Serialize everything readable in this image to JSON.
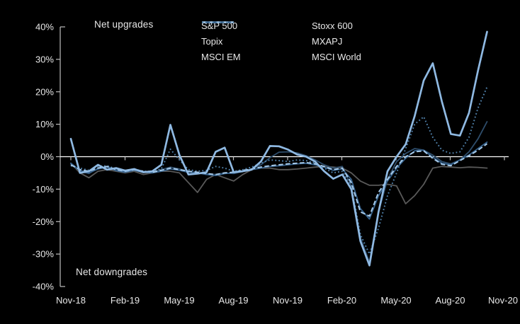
{
  "chart_data": {
    "type": "line",
    "title": "",
    "annotations": {
      "upgrades": "Net upgrades",
      "downgrades": "Net downgrades"
    },
    "x_tick_labels": [
      "Nov-18",
      "Feb-19",
      "May-19",
      "Aug-19",
      "Nov-19",
      "Feb-20",
      "May-20",
      "Aug-20",
      "Nov-20"
    ],
    "x_range_note": "series sampled semi-monthly from Nov-2018 to Oct-2020 (47 points)",
    "ylim": [
      -40,
      40
    ],
    "y_tick_labels": [
      "40%",
      "30%",
      "20%",
      "10%",
      "0%",
      "-10%",
      "-20%",
      "-30%",
      "-40%"
    ],
    "y_unit": "% net upgrades",
    "grid": false,
    "legend_position": "top-center-right, 2 columns",
    "background": "#000000",
    "axis_color": "#bfbfbf",
    "text_color": "#e8e8e8",
    "zero_line_color": "#ffffff",
    "series": [
      {
        "name": "S&P 500",
        "color": "#8FB9E2",
        "style": "solid",
        "width": 2.7,
        "values": [
          5.5,
          -5,
          -4.5,
          -2.5,
          -4,
          -3.5,
          -4.3,
          -3.8,
          -4.8,
          -4.5,
          -2.5,
          9.8,
          0.5,
          -5.5,
          -5.2,
          -4.8,
          1.5,
          2.8,
          -4.8,
          -4.5,
          -4,
          -1.5,
          3.3,
          3.2,
          2.2,
          0.7,
          0,
          -1.5,
          -4.5,
          -6.8,
          -5.5,
          -10,
          -26,
          -33.5,
          -17,
          -4.5,
          0,
          3.8,
          12.5,
          23.5,
          28.8,
          17,
          7,
          6.5,
          13.5,
          26.5,
          38.5
        ]
      },
      {
        "name": "Stoxx 600",
        "color": "#2E4D6B",
        "style": "solid",
        "width": 1.8,
        "values": [
          -2.2,
          -4.5,
          -5.2,
          -3.5,
          -3,
          -4,
          -4.5,
          -3.8,
          -4.5,
          -4.8,
          -4,
          -3.2,
          -3.8,
          -4.5,
          -5,
          -5.3,
          -5.5,
          -5,
          -5.2,
          -4.5,
          -3.8,
          -2.5,
          -0.3,
          1.4,
          1.5,
          1.2,
          0.3,
          -1,
          -2.5,
          -3.5,
          -3,
          -9,
          -25,
          -32.5,
          -17,
          -7,
          -1.5,
          1,
          2.5,
          2,
          0.5,
          -1.5,
          -2.2,
          -1,
          1.5,
          5.5,
          10.8
        ]
      },
      {
        "name": "Topix",
        "color": "#595959",
        "style": "solid",
        "width": 1.8,
        "values": [
          -2,
          -5,
          -6.5,
          -4.5,
          -4,
          -4.5,
          -5,
          -4.5,
          -5.5,
          -5,
          -4.5,
          -4.5,
          -5,
          -8,
          -11,
          -7,
          -5.5,
          -6.5,
          -7.5,
          -5.5,
          -4,
          -3.5,
          -3.5,
          -4,
          -4,
          -3.8,
          -3.5,
          -3.2,
          -3,
          -3.2,
          -3.5,
          -5,
          -7.5,
          -8.8,
          -8.8,
          -8.5,
          -9,
          -14.5,
          -12,
          -8.5,
          -3.5,
          -3,
          -3.2,
          -3.4,
          -3.2,
          -3.3,
          -3.5
        ]
      },
      {
        "name": "MXAPJ",
        "color": "#35618C",
        "style": "solid",
        "width": 1.8,
        "values": [
          -2,
          -4.2,
          -5,
          -3.8,
          -3.2,
          -4.3,
          -4.8,
          -4.2,
          -4.8,
          -5,
          -4.5,
          -3.8,
          -4.2,
          -4.8,
          -5,
          -5.5,
          -5.8,
          -5.2,
          -5,
          -4.5,
          -4,
          -3.5,
          -3,
          -2.8,
          -2.5,
          -2.2,
          -2,
          -2.5,
          -3.2,
          -4.2,
          -3.8,
          -7,
          -16,
          -19.2,
          -12,
          -7.5,
          -3.5,
          -0.5,
          1.8,
          2,
          -0.2,
          -2,
          -2.5,
          -1,
          0.5,
          2.5,
          4.5
        ]
      },
      {
        "name": "MSCI EM",
        "color": "#A6C9E8",
        "style": "dashed",
        "width": 2,
        "values": [
          -2.5,
          -4,
          -4.5,
          -3.5,
          -3,
          -4,
          -4.5,
          -4,
          -4.5,
          -4.8,
          -4.2,
          -3.5,
          -4,
          -4.5,
          -4.8,
          -5.2,
          -5.5,
          -5,
          -4.8,
          -4.2,
          -3.8,
          -3.2,
          -2.8,
          -2.5,
          -2.2,
          -2,
          -1.8,
          -2.2,
          -3,
          -4,
          -3.5,
          -8,
          -17,
          -18.3,
          -11,
          -7,
          -3,
          0,
          1.5,
          1.8,
          -0.5,
          -2.3,
          -2.8,
          -1.2,
          0.3,
          2,
          4
        ]
      },
      {
        "name": "MSCI World",
        "color": "#4F7FA8",
        "style": "dotted",
        "width": 2,
        "values": [
          -2.8,
          -3.5,
          -4.2,
          -3,
          -2.8,
          -3.8,
          -4.2,
          -3.8,
          -4.5,
          -4.5,
          -3.8,
          2.3,
          -1,
          -4,
          -4.5,
          -4.2,
          -3,
          -3.5,
          -4.5,
          -4,
          -3.2,
          -2,
          -1,
          -1.2,
          -1.5,
          -1,
          -1.2,
          -2,
          -3.5,
          -5,
          -4.5,
          -9,
          -24,
          -30,
          -22,
          -12,
          -5,
          2.5,
          10,
          12.3,
          6,
          2,
          1,
          1.5,
          6,
          15,
          21.5
        ]
      }
    ],
    "draw_order": [
      "Topix",
      "Stoxx 600",
      "MXAPJ",
      "MSCI World",
      "MSCI EM",
      "S&P 500"
    ]
  }
}
